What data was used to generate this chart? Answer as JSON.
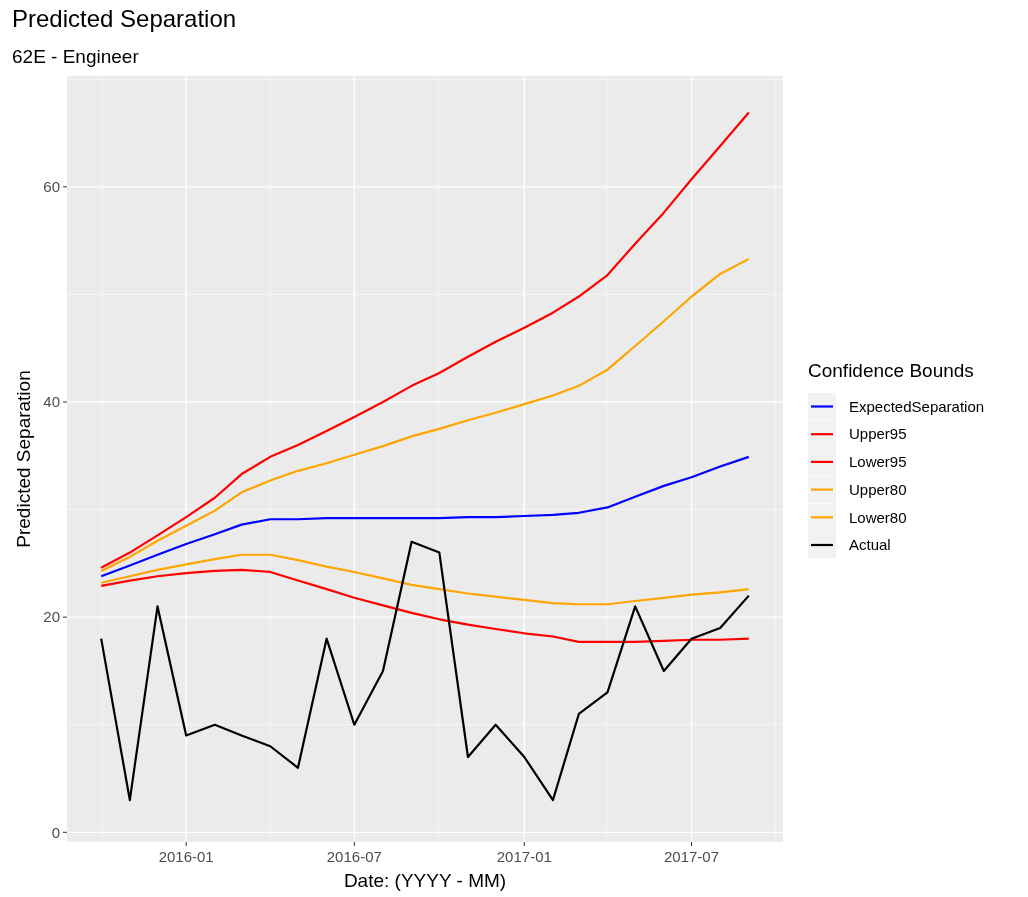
{
  "chart_data": {
    "type": "line",
    "title": "Predicted Separation",
    "subtitle": "62E - Engineer",
    "xlabel": "Date: (YYYY - MM)",
    "ylabel": "Predicted Separation",
    "legend_title": "Confidence Bounds",
    "x": [
      "2015-10",
      "2015-11",
      "2015-12",
      "2016-01",
      "2016-02",
      "2016-03",
      "2016-04",
      "2016-05",
      "2016-06",
      "2016-07",
      "2016-08",
      "2016-09",
      "2016-10",
      "2016-11",
      "2016-12",
      "2017-01",
      "2017-02",
      "2017-03",
      "2017-04",
      "2017-05",
      "2017-06",
      "2017-07",
      "2017-08",
      "2017-09"
    ],
    "series": [
      {
        "name": "ExpectedSeparation",
        "color": "#0000ff",
        "values": [
          23.8,
          24.8,
          25.8,
          26.8,
          27.7,
          28.6,
          29.1,
          29.1,
          29.2,
          29.2,
          29.2,
          29.2,
          29.2,
          29.3,
          29.3,
          29.4,
          29.5,
          29.7,
          30.2,
          31.2,
          32.2,
          33.0,
          34.0,
          34.9
        ]
      },
      {
        "name": "Upper95",
        "color": "#ff0000",
        "values": [
          24.6,
          26.0,
          27.6,
          29.3,
          31.1,
          33.3,
          34.9,
          36.0,
          37.3,
          38.6,
          40.0,
          41.5,
          42.7,
          44.2,
          45.6,
          46.9,
          48.3,
          49.8,
          51.8,
          54.7,
          57.6,
          60.7,
          63.8,
          66.9
        ]
      },
      {
        "name": "Lower95",
        "color": "#ff0000",
        "values": [
          22.9,
          23.4,
          23.8,
          24.1,
          24.3,
          24.4,
          24.2,
          23.4,
          22.6,
          21.8,
          21.1,
          20.4,
          19.8,
          19.3,
          18.9,
          18.5,
          18.2,
          17.7,
          17.7,
          17.7,
          17.8,
          17.9,
          17.9,
          18.0
        ]
      },
      {
        "name": "Upper80",
        "color": "#ffa500",
        "values": [
          24.3,
          25.6,
          27.1,
          28.5,
          29.9,
          31.6,
          32.7,
          33.6,
          34.3,
          35.1,
          35.9,
          36.8,
          37.5,
          38.3,
          39.0,
          39.8,
          40.6,
          41.5,
          43.0,
          45.2,
          47.5,
          49.8,
          51.9,
          53.3
        ]
      },
      {
        "name": "Lower80",
        "color": "#ffa500",
        "values": [
          23.2,
          23.8,
          24.4,
          24.9,
          25.4,
          25.8,
          25.8,
          25.3,
          24.7,
          24.2,
          23.6,
          23.0,
          22.6,
          22.2,
          21.9,
          21.6,
          21.3,
          21.2,
          21.2,
          21.5,
          21.8,
          22.1,
          22.3,
          22.6
        ]
      },
      {
        "name": "Actual",
        "color": "#000000",
        "values": [
          18,
          3,
          21,
          9,
          10,
          9,
          8,
          6,
          18,
          10,
          15,
          27,
          26,
          7,
          10,
          7,
          3,
          11,
          13,
          21,
          15,
          18,
          19,
          22
        ]
      }
    ],
    "xlim": [
      "2015-08-25",
      "2017-10-08"
    ],
    "xticks": [
      "2016-01",
      "2016-07",
      "2017-01",
      "2017-07"
    ],
    "ylim": [
      -0.9,
      70.3
    ],
    "yticks": [
      0,
      20,
      40,
      60
    ],
    "grid": true,
    "legend": "right"
  }
}
